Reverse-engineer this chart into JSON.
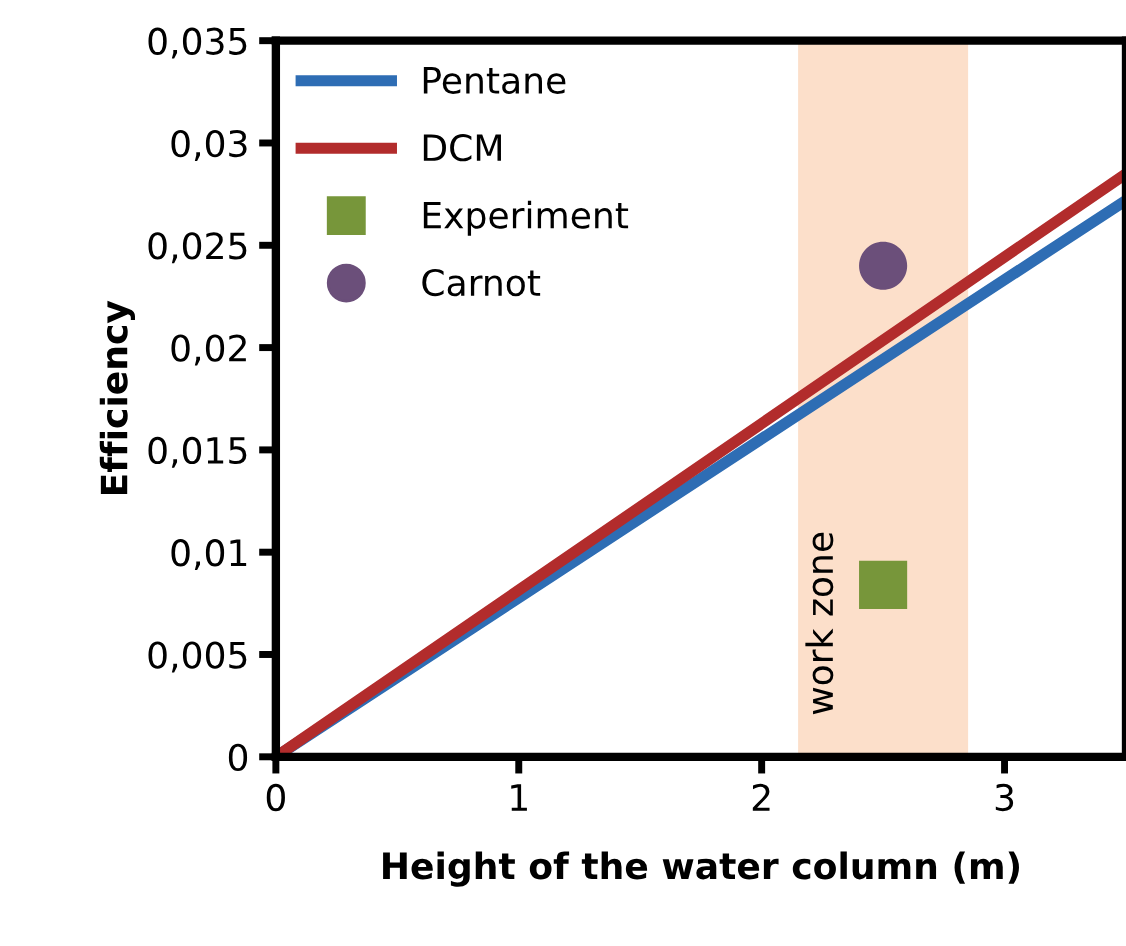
{
  "chart_data": {
    "type": "line",
    "xlabel": "Height of the water column (m)",
    "ylabel": "Efficiency",
    "xlim": [
      0,
      3.5
    ],
    "xticks": [
      0,
      1,
      2,
      3
    ],
    "ylim": [
      0,
      0.035
    ],
    "yticks": [
      {
        "value": 0,
        "label": "0"
      },
      {
        "value": 0.005,
        "label": "0,005"
      },
      {
        "value": 0.01,
        "label": "0,01"
      },
      {
        "value": 0.015,
        "label": "0,015"
      },
      {
        "value": 0.02,
        "label": "0,02"
      },
      {
        "value": 0.025,
        "label": "0,025"
      },
      {
        "value": 0.03,
        "label": "0,03"
      },
      {
        "value": 0.035,
        "label": "0,035"
      }
    ],
    "series": [
      {
        "name": "Pentane",
        "color": "#2e6db4",
        "x": [
          0,
          3.5
        ],
        "values": [
          0,
          0.0272
        ]
      },
      {
        "name": "DCM",
        "color": "#b22c2c",
        "x": [
          0,
          3.5
        ],
        "values": [
          0,
          0.0285
        ]
      },
      {
        "name": "Experiment",
        "type": "scatter",
        "marker": "square",
        "color": "#77963a",
        "x": [
          2.5
        ],
        "values": [
          0.0084
        ]
      },
      {
        "name": "Carnot",
        "type": "scatter",
        "marker": "circle",
        "color": "#6b4f7a",
        "x": [
          2.5
        ],
        "values": [
          0.024
        ]
      }
    ],
    "bands": [
      {
        "axis": "x",
        "from": 2.15,
        "to": 2.85,
        "label": "work zone",
        "color": "#f9b98a"
      }
    ],
    "grid": false,
    "legend": "top left"
  }
}
